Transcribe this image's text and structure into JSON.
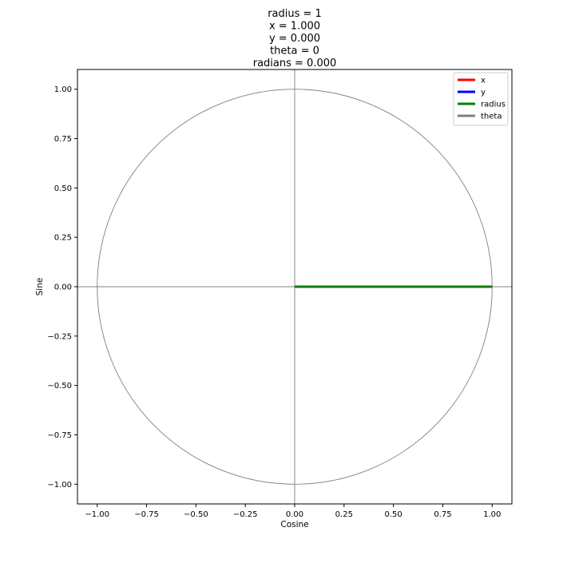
{
  "chart_data": {
    "type": "line",
    "title_lines": [
      "radius = 1",
      "x = 1.000",
      "y = 0.000",
      "theta = 0",
      "radians = 0.000"
    ],
    "xlabel": "Cosine",
    "ylabel": "Sine",
    "xlim": [
      -1.1,
      1.1
    ],
    "ylim": [
      -1.1,
      1.1
    ],
    "xticks": [
      -1.0,
      -0.75,
      -0.5,
      -0.25,
      0.0,
      0.25,
      0.5,
      0.75,
      1.0
    ],
    "xtick_labels": [
      "−1.00",
      "−0.75",
      "−0.50",
      "−0.25",
      "0.00",
      "0.25",
      "0.50",
      "0.75",
      "1.00"
    ],
    "yticks": [
      1.0,
      0.75,
      0.5,
      0.25,
      0.0,
      -0.25,
      -0.5,
      -0.75,
      -1.0
    ],
    "ytick_labels": [
      "1.00",
      "0.75",
      "0.50",
      "0.25",
      "0.00",
      "−0.25",
      "−0.50",
      "−0.75",
      "−1.00"
    ],
    "grid": false,
    "legend_position": "top-right",
    "circle": {
      "radius": 1,
      "color": "#808080"
    },
    "reference_lines": {
      "x": 0,
      "y": 0,
      "color": "#808080"
    },
    "series": [
      {
        "name": "x",
        "color": "#ff0000",
        "points": [
          [
            0,
            0
          ],
          [
            1,
            0
          ]
        ]
      },
      {
        "name": "y",
        "color": "#0000ff",
        "points": [
          [
            1,
            0
          ],
          [
            1,
            0
          ]
        ]
      },
      {
        "name": "radius",
        "color": "#008000",
        "points": [
          [
            0,
            0
          ],
          [
            1,
            0
          ]
        ]
      },
      {
        "name": "theta",
        "color": "#808080",
        "points": []
      }
    ]
  }
}
